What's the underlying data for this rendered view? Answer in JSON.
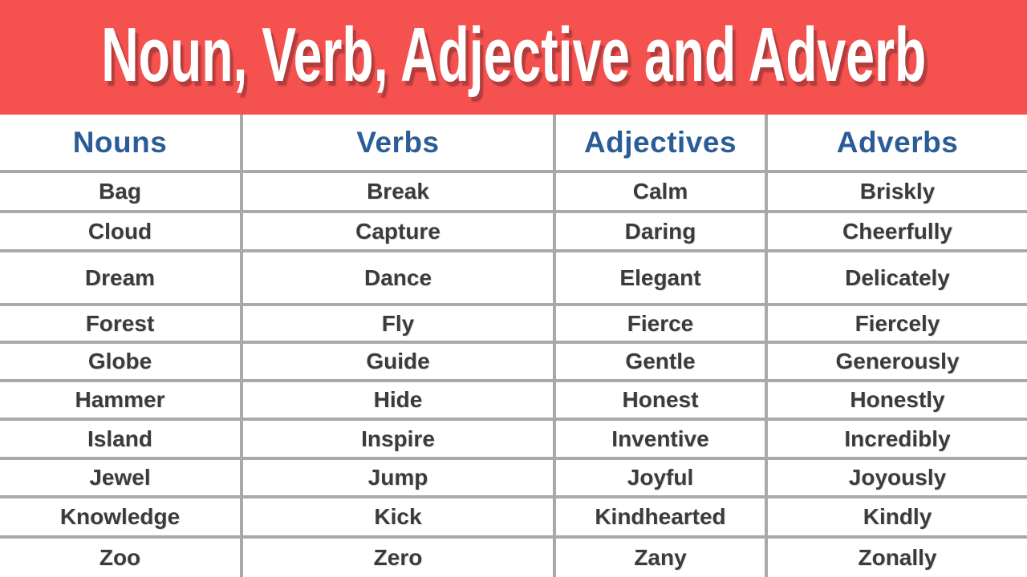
{
  "banner": {
    "title": "Noun, Verb, Adjective and Adverb"
  },
  "table": {
    "headers": [
      "Nouns",
      "Verbs",
      "Adjectives",
      "Adverbs"
    ],
    "rows": [
      [
        "Bag",
        "Break",
        "Calm",
        "Briskly"
      ],
      [
        "Cloud",
        "Capture",
        "Daring",
        "Cheerfully"
      ],
      [
        "Dream",
        "Dance",
        "Elegant",
        "Delicately"
      ],
      [
        "Forest",
        "Fly",
        "Fierce",
        "Fiercely"
      ],
      [
        "Globe",
        "Guide",
        "Gentle",
        "Generously"
      ],
      [
        "Hammer",
        "Hide",
        "Honest",
        "Honestly"
      ],
      [
        "Island",
        "Inspire",
        "Inventive",
        "Incredibly"
      ],
      [
        "Jewel",
        "Jump",
        "Joyful",
        "Joyously"
      ],
      [
        "Knowledge",
        "Kick",
        "Kindhearted",
        "Kindly"
      ],
      [
        "Zoo",
        "Zero",
        "Zany",
        "Zonally"
      ]
    ]
  },
  "colors": {
    "banner_bg": "#f5514f",
    "header_text": "#2a5d97",
    "cell_text": "#3b3b3b",
    "grid_line": "#a9a9a9",
    "page_bg": "#ffffff"
  }
}
